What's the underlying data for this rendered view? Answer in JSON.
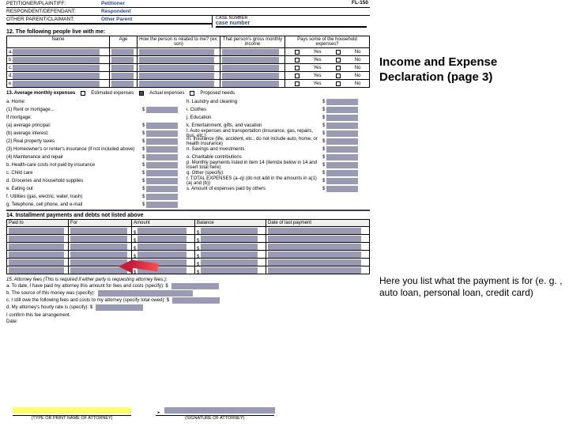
{
  "colors": {
    "fill": "#9a9ab5",
    "accent": "#2a4b8d",
    "highlight": "#ffff66",
    "arrow": "#c41e3a"
  },
  "form_number": "FL-150",
  "header": {
    "petitioner_label": "PETITIONER/PLAINTIFF:",
    "petitioner_val": "Petitioner",
    "respondent_label": "RESPONDENT/DEFENDANT:",
    "respondent_val": "Respondent",
    "other_label": "OTHER PARENT/CLAIMANT:",
    "other_val": "Other Parent",
    "case_label": "CASE NUMBER",
    "case_val": "case number"
  },
  "sec12": {
    "title": "12. The following people live with me:",
    "cols": {
      "name": "Name",
      "age": "Age",
      "rel": "How the person is related to me? (ex: son)",
      "inc": "That person's gross monthly income",
      "pay": "Pays some of the household expenses?"
    },
    "yes": "Yes",
    "no": "No",
    "rows": [
      "a.",
      "b.",
      "c.",
      "d.",
      "e."
    ]
  },
  "sec13": {
    "title": "13. Average monthly expenses",
    "opt1": "Estimated expenses",
    "opt2": "Actual expenses",
    "opt3": "Proposed needs",
    "left": [
      "a. Home:",
      "(1) Rent or   mortgage...",
      "If mortgage:",
      "(a) average principal:",
      "(b) average interest:",
      "(2) Real property taxes",
      "(3) Homeowner's or renter's insurance (if not included above)",
      "(4) Maintenance and repair",
      "b. Health-care costs not paid by insurance",
      "c. Child care",
      "d. Groceries and household supplies",
      "e. Eating out",
      "f. Utilities (gas, electric, water, trash)",
      "g. Telephone, cell phone, and e-mail"
    ],
    "right": [
      "h. Laundry and cleaning",
      "i. Clothes",
      "j. Education",
      "k. Entertainment, gifts, and vacation",
      "l. Auto expenses and transportation (insurance, gas, repairs, bus, etc.)",
      "m. Insurance (life, accident, etc.; do not include auto, home, or health insurance)",
      "n. Savings and investments",
      "o. Charitable contributions",
      "p. Monthly payments listed in item 14 (itemize below in 14 and insert total here)",
      "q. Other (specify):",
      "r. TOTAL EXPENSES (a–q) (do not add in the amounts in a(1)(a) and (b))",
      "s. Amount of expenses paid by others"
    ]
  },
  "sec14": {
    "title": "14. Installment payments and debts not listed above",
    "cols": {
      "paid": "Paid to",
      "for": "For",
      "amt": "Amount",
      "bal": "Balance",
      "date": "Date of last payment"
    },
    "dol": "$"
  },
  "sec15": {
    "title": "15. Attorney fees (This is required if either party is requesting attorney fees.):",
    "a": "a. To date, I have paid my attorney this amount for fees and costs (specify): $",
    "b": "b. The source of this money was (specify):",
    "c": "c. I still owe the following fees and costs to my attorney (specify total owed): $",
    "d": "d. My attorney's hourly rate is (specify): $",
    "confirm": "I confirm this fee arrangement.",
    "date": "Date:",
    "sig1": "(TYPE OR PRINT NAME OF ATTORNEY)",
    "sig2": "(SIGNATURE OF ATTORNEY)"
  },
  "side": {
    "heading": "Income and Expense Declaration (page 3)",
    "note": "Here you list what the payment is for (e. g. , auto loan, personal loan, credit card)"
  }
}
